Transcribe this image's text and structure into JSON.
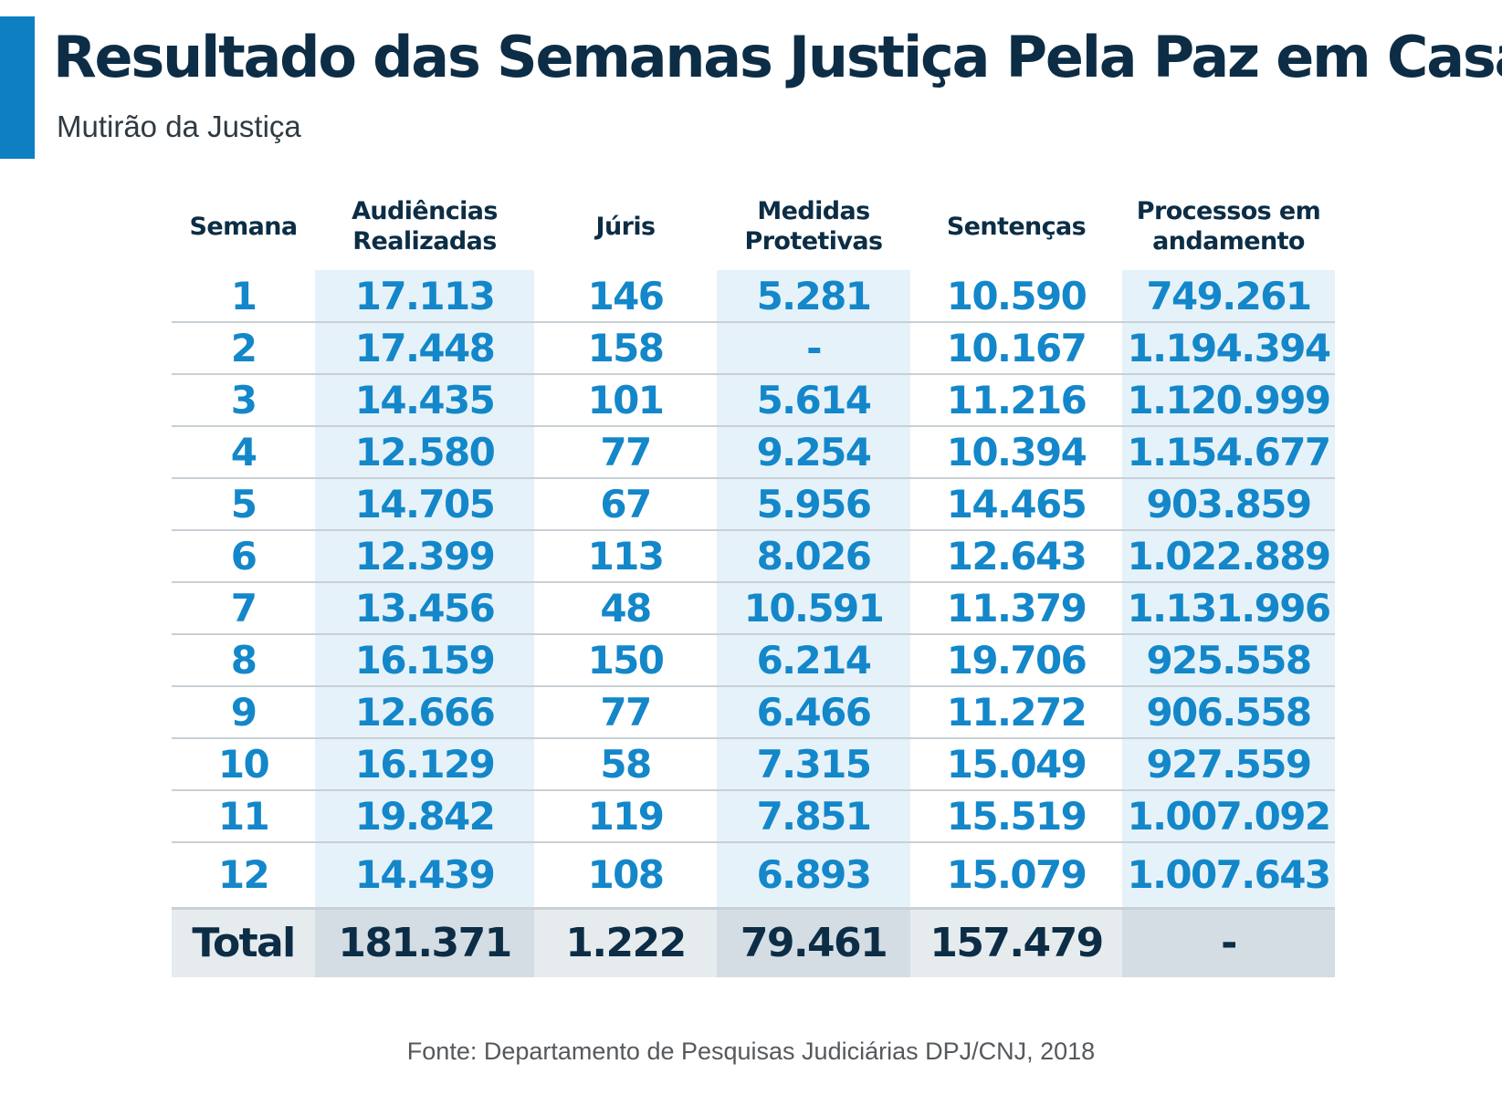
{
  "header": {
    "accent_color": "#0d7fc2",
    "title": "Resultado das Semanas Justiça Pela Paz em Casa",
    "subtitle": "Mutirão da Justiça"
  },
  "chart_data": {
    "type": "table",
    "columns": [
      "Semana",
      "Audiências Realizadas",
      "Júris",
      "Medidas Protetivas",
      "Sentenças",
      "Processos em andamento"
    ],
    "rows": [
      [
        "1",
        "17.113",
        "146",
        "5.281",
        "10.590",
        "749.261"
      ],
      [
        "2",
        "17.448",
        "158",
        "-",
        "10.167",
        "1.194.394"
      ],
      [
        "3",
        "14.435",
        "101",
        "5.614",
        "11.216",
        "1.120.999"
      ],
      [
        "4",
        "12.580",
        "77",
        "9.254",
        "10.394",
        "1.154.677"
      ],
      [
        "5",
        "14.705",
        "67",
        "5.956",
        "14.465",
        "903.859"
      ],
      [
        "6",
        "12.399",
        "113",
        "8.026",
        "12.643",
        "1.022.889"
      ],
      [
        "7",
        "13.456",
        "48",
        "10.591",
        "11.379",
        "1.131.996"
      ],
      [
        "8",
        "16.159",
        "150",
        "6.214",
        "19.706",
        "925.558"
      ],
      [
        "9",
        "12.666",
        "77",
        "6.466",
        "11.272",
        "906.558"
      ],
      [
        "10",
        "16.129",
        "58",
        "7.315",
        "15.049",
        "927.559"
      ],
      [
        "11",
        "19.842",
        "119",
        "7.851",
        "15.519",
        "1.007.092"
      ],
      [
        "12",
        "14.439",
        "108",
        "6.893",
        "15.079",
        "1.007.643"
      ]
    ],
    "total": [
      "Total",
      "181.371",
      "1.222",
      "79.461",
      "157.479",
      "-"
    ],
    "value_color": "#1387c9",
    "header_color": "#0c2d45",
    "shaded_column_color": "#e6f2f9"
  },
  "source": "Fonte: Departamento de Pesquisas Judiciárias DPJ/CNJ, 2018"
}
